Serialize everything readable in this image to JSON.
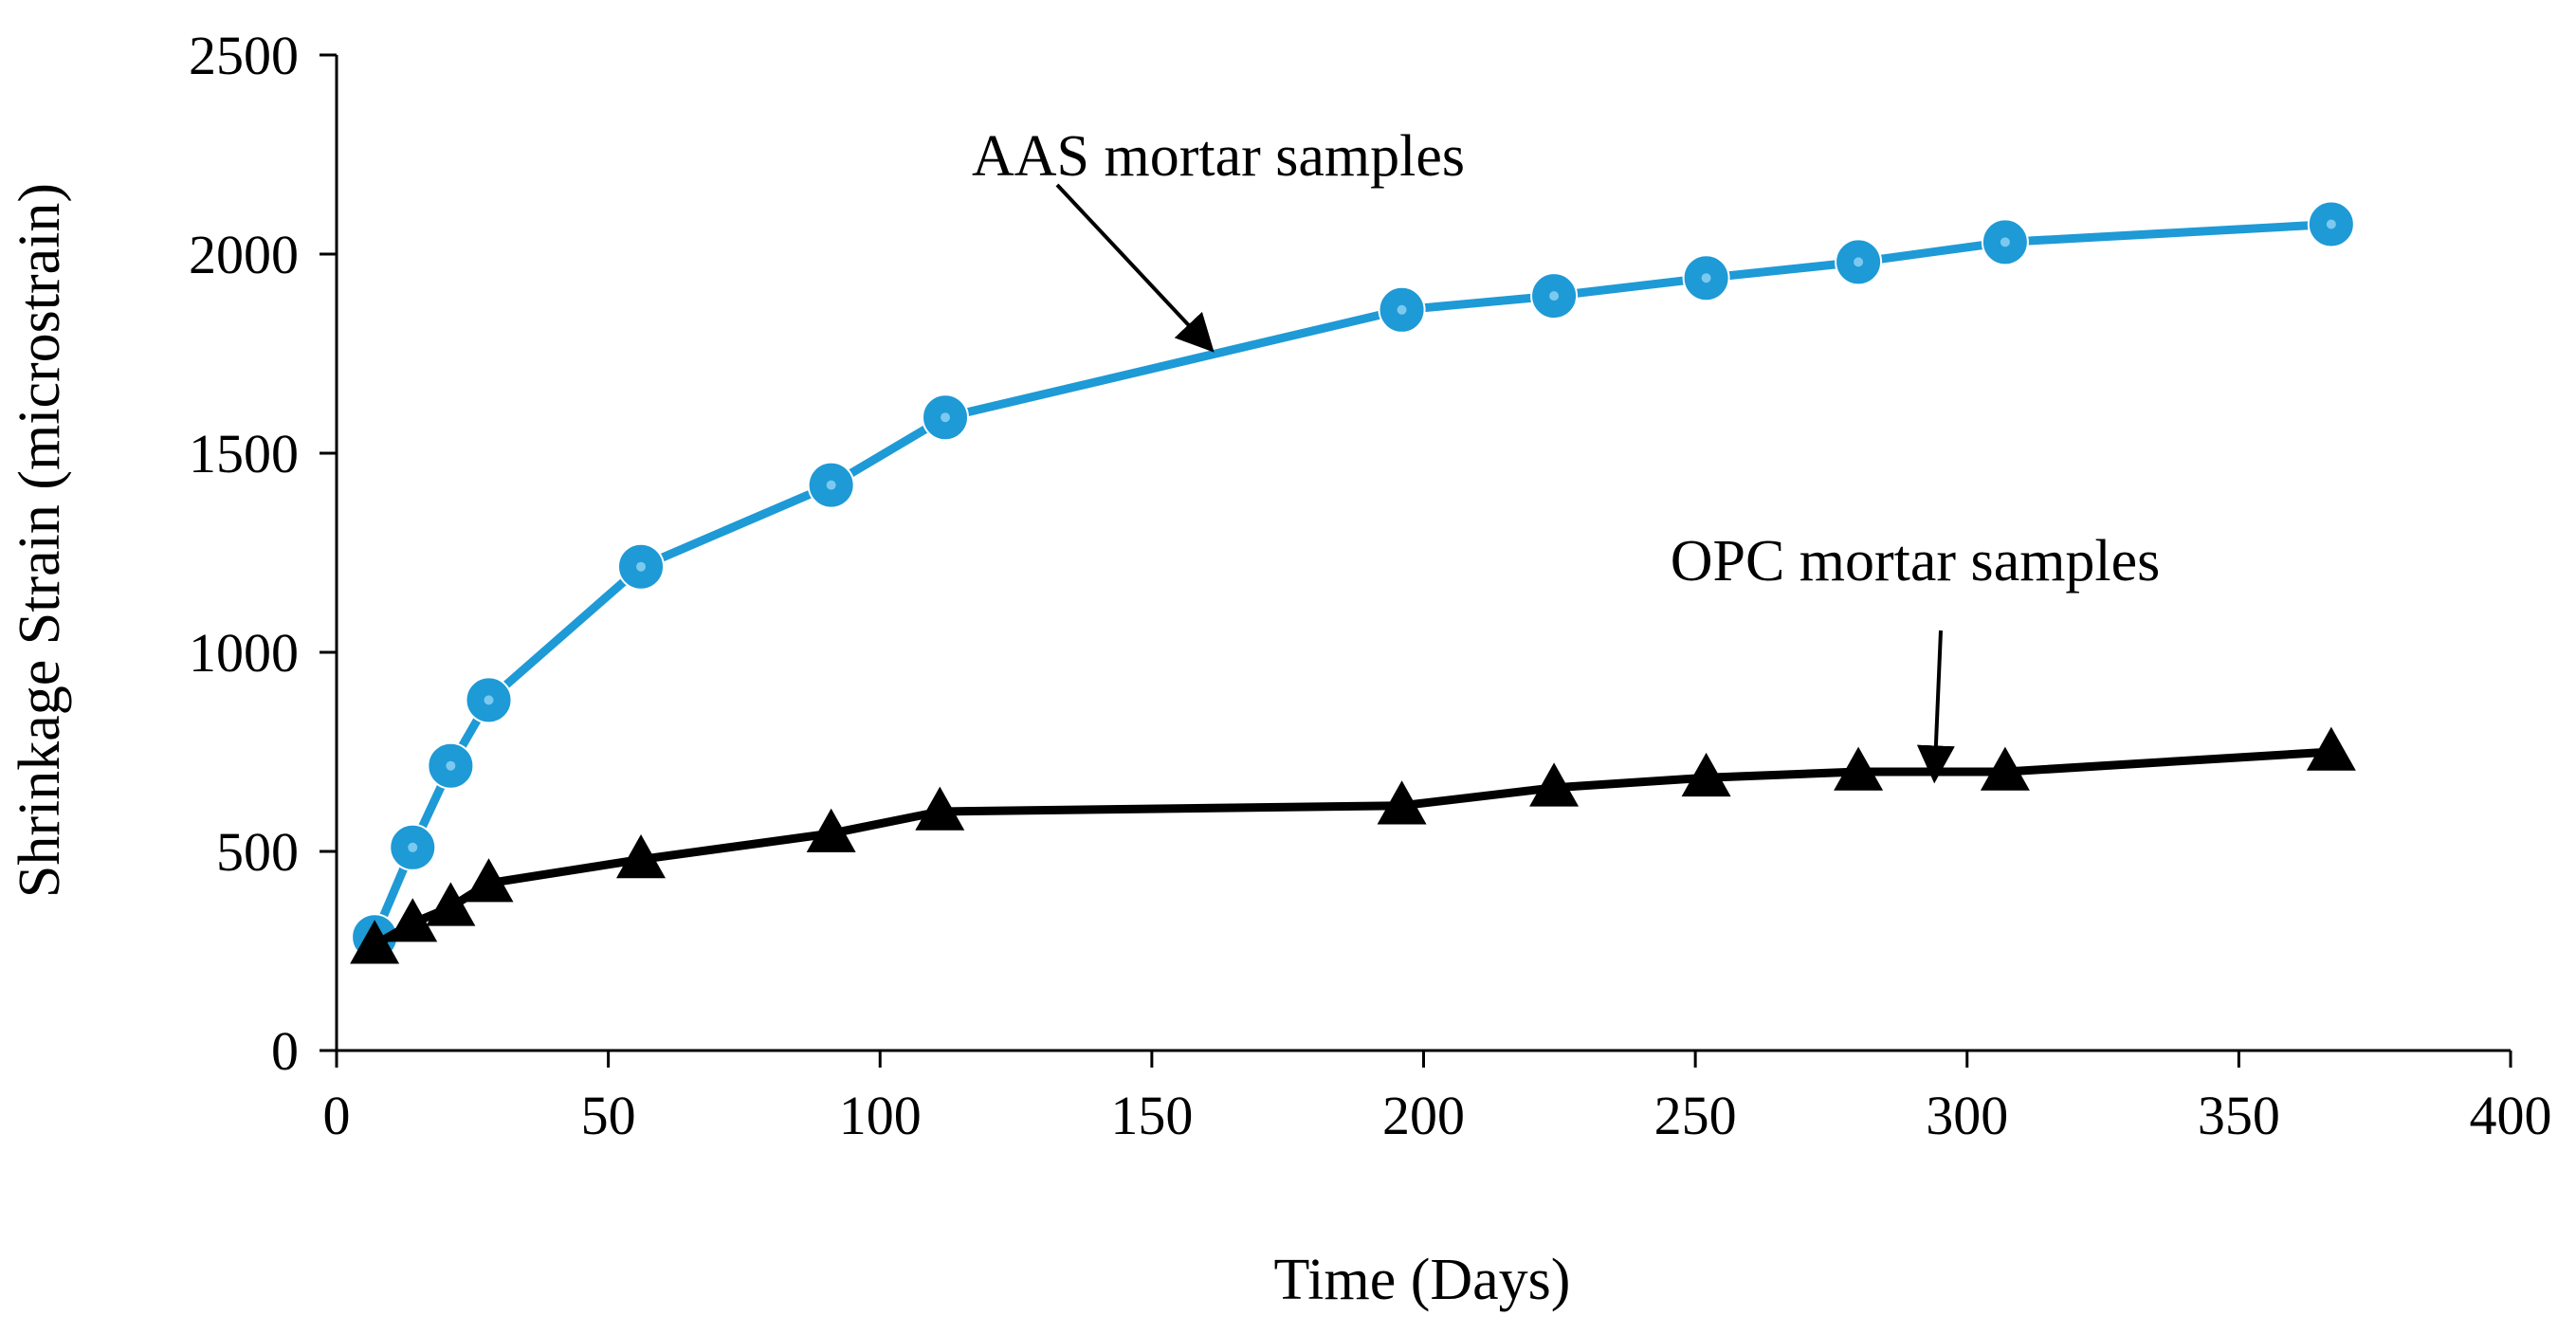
{
  "chart_data": {
    "type": "line",
    "title": "",
    "xlabel": "Time (Days)",
    "ylabel": "Shrinkage Strain (microstrain)",
    "xlim": [
      0,
      400
    ],
    "ylim": [
      0,
      2500
    ],
    "xticks": [
      0,
      50,
      100,
      150,
      200,
      250,
      300,
      350,
      400
    ],
    "yticks": [
      0,
      500,
      1000,
      1500,
      2000,
      2500
    ],
    "grid": false,
    "series": [
      {
        "name": "AAS mortar samples",
        "color": "#1E9AD6",
        "marker": "circle",
        "x": [
          7,
          14,
          21,
          28,
          56,
          91,
          112,
          196,
          224,
          252,
          280,
          307,
          367
        ],
        "y": [
          285,
          510,
          715,
          880,
          1215,
          1420,
          1590,
          1860,
          1895,
          1940,
          1980,
          2030,
          2075
        ]
      },
      {
        "name": "OPC mortar samples",
        "color": "#000000",
        "marker": "triangle",
        "x": [
          7,
          14,
          21,
          28,
          56,
          91,
          111,
          196,
          224,
          252,
          280,
          307,
          367
        ],
        "y": [
          265,
          320,
          360,
          420,
          480,
          545,
          600,
          615,
          660,
          685,
          700,
          700,
          750
        ]
      }
    ],
    "annotations": [
      {
        "text": "AAS mortar samples",
        "series": "AAS mortar samples",
        "points_to": [
          161,
          1760
        ]
      },
      {
        "text": "OPC mortar samples",
        "series": "OPC mortar samples",
        "points_to": [
          294,
          680
        ]
      }
    ]
  }
}
